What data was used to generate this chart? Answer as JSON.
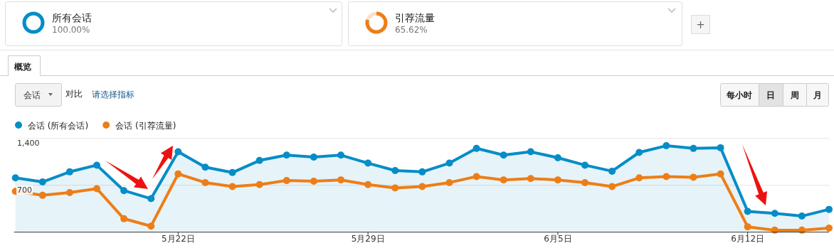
{
  "chart_data": {
    "type": "line",
    "x": [
      "--05-16",
      "--05-17",
      "--05-18",
      "--05-19",
      "--05-20",
      "--05-21",
      "--05-22",
      "--05-23",
      "--05-24",
      "--05-25",
      "--05-26",
      "--05-27",
      "--05-28",
      "--05-29",
      "--05-30",
      "--05-31",
      "--06-01",
      "--06-02",
      "--06-03",
      "--06-04",
      "--06-05",
      "--06-06",
      "--06-07",
      "--06-08",
      "--06-09",
      "--06-10",
      "--06-11",
      "--06-12",
      "--06-13",
      "--06-14",
      "--06-15"
    ],
    "series": [
      {
        "name": "会话 (所有会话)",
        "color": "#058dc7",
        "type": "area",
        "values": [
          810,
          750,
          900,
          1000,
          620,
          500,
          1200,
          970,
          890,
          1070,
          1150,
          1120,
          1150,
          1030,
          920,
          900,
          1030,
          1250,
          1150,
          1200,
          1110,
          1000,
          910,
          1190,
          1290,
          1250,
          1260,
          310,
          280,
          240,
          340
        ]
      },
      {
        "name": "会话 (引荐流量)",
        "color": "#ed7e17",
        "values": [
          610,
          550,
          590,
          650,
          200,
          90,
          870,
          740,
          680,
          710,
          770,
          760,
          780,
          710,
          660,
          680,
          740,
          830,
          780,
          800,
          780,
          740,
          680,
          810,
          830,
          820,
          870,
          80,
          30,
          30,
          60
        ]
      }
    ],
    "xlim": [
      "--05-16",
      "--06-15"
    ],
    "xticks": [
      {
        "value": "--05-22",
        "label": "5月22日"
      },
      {
        "value": "--05-29",
        "label": "5月29日"
      },
      {
        "value": "--06-05",
        "label": "6月5日"
      },
      {
        "value": "--06-12",
        "label": "6月12日"
      }
    ],
    "ylim": [
      0,
      1400
    ],
    "yticks": [
      700,
      {
        "value": 1400,
        "label": "1,400"
      }
    ],
    "grid": "y",
    "legend": "top left",
    "marker": "circle",
    "annotations": [
      "所有会话",
      "100.00%",
      "引荐流量",
      "65.62%",
      "+",
      "概览",
      "会话",
      "对比",
      "请选择指标",
      "每小时",
      "日",
      "周",
      "月"
    ]
  }
}
